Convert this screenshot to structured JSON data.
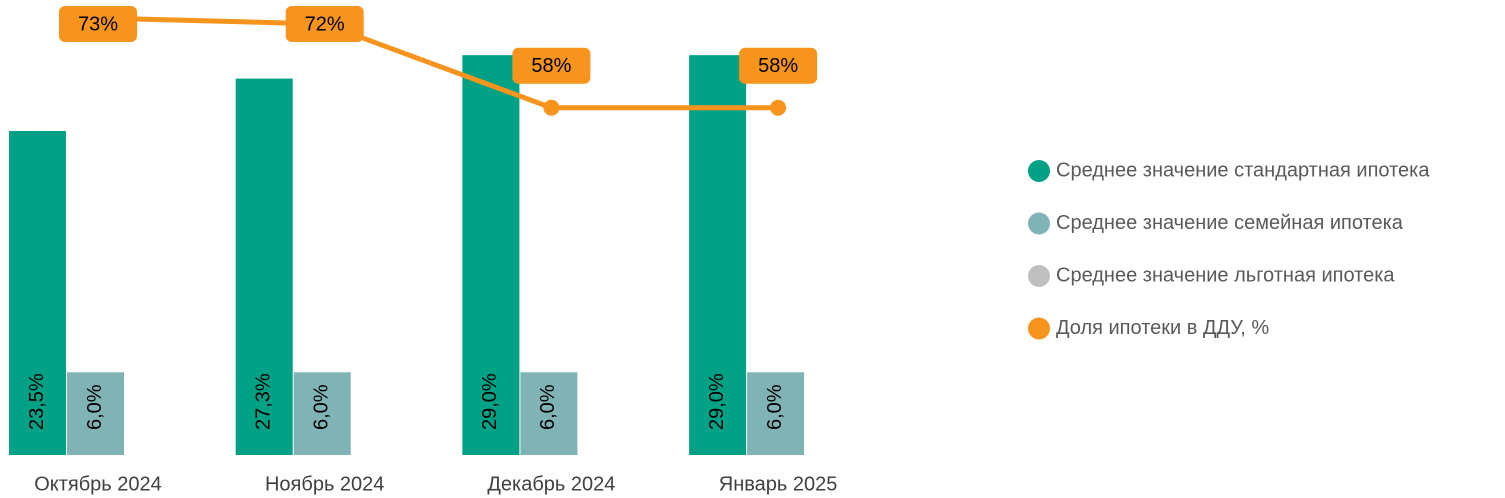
{
  "chart_data": {
    "type": "bar",
    "categories": [
      "Октябрь 2024",
      "Ноябрь 2024",
      "Декабрь 2024",
      "Январь 2025"
    ],
    "series": [
      {
        "name": "Среднее значение стандартная ипотека",
        "color": "#00a185",
        "values": [
          23.5,
          27.3,
          29.0,
          29.0
        ],
        "value_labels": [
          "23,5%",
          "27,3%",
          "29,0%",
          "29,0%"
        ]
      },
      {
        "name": "Среднее значение семейная ипотека",
        "color": "#80b3b6",
        "values": [
          6.0,
          6.0,
          6.0,
          6.0
        ],
        "value_labels": [
          "6,0%",
          "6,0%",
          "6,0%",
          "6,0%"
        ]
      },
      {
        "name": "Среднее значение льготная ипотека",
        "color": "#bfbfbf",
        "values": [
          null,
          null,
          null,
          null
        ]
      },
      {
        "name": "Доля ипотеки в ДДУ, %",
        "color": "#f7941d",
        "type": "line",
        "axis": "y2",
        "values": [
          73,
          72,
          58,
          58
        ],
        "value_labels": [
          "73%",
          "72%",
          "58%",
          "58%"
        ]
      }
    ],
    "ylim": [
      0,
      33
    ],
    "y2lim": [
      0,
      76
    ],
    "grid": false,
    "legend": "right"
  }
}
